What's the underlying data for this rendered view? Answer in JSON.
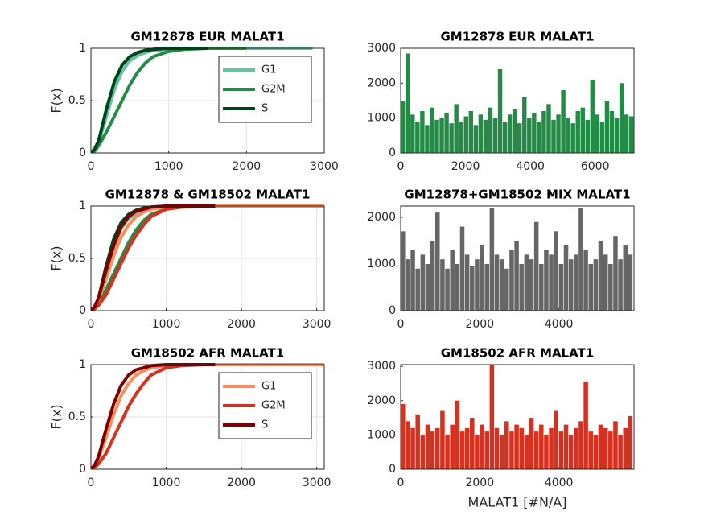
{
  "chart_data": [
    {
      "type": "line",
      "title": "GM12878 EUR MALAT1",
      "y_label": "F(x)",
      "x": [
        0,
        50,
        100,
        200,
        300,
        400,
        500,
        600,
        700,
        800,
        1000,
        1200,
        1500,
        2000,
        2500,
        2850
      ],
      "series": [
        {
          "name": "G1",
          "color": "#66c2a4",
          "values": [
            0,
            0.03,
            0.1,
            0.35,
            0.6,
            0.78,
            0.88,
            0.93,
            0.96,
            0.98,
            0.99,
            1,
            1,
            1,
            1,
            1
          ]
        },
        {
          "name": "G2M",
          "color": "#238b45",
          "values": [
            0,
            0.02,
            0.07,
            0.2,
            0.35,
            0.5,
            0.65,
            0.77,
            0.86,
            0.92,
            0.97,
            0.99,
            1,
            1,
            null,
            null
          ]
        },
        {
          "name": "S",
          "color": "#00441b",
          "values": [
            0,
            0.04,
            0.12,
            0.42,
            0.68,
            0.84,
            0.92,
            0.96,
            0.98,
            0.99,
            1,
            1,
            1,
            null,
            null,
            null
          ]
        }
      ],
      "xlim": [
        0,
        3000
      ],
      "xticks": [
        0,
        1000,
        2000,
        3000
      ],
      "ylim": [
        0,
        1
      ],
      "yticks": [
        0,
        0.5,
        1
      ],
      "grid": true,
      "legend": "upper right"
    },
    {
      "type": "bar",
      "title": "GM12878 EUR MALAT1",
      "color": "#238b45",
      "x": [
        0,
        150,
        300,
        450,
        600,
        750,
        900,
        1050,
        1200,
        1350,
        1500,
        1650,
        1800,
        1950,
        2100,
        2250,
        2400,
        2550,
        2700,
        2850,
        3000,
        3150,
        3300,
        3450,
        3600,
        3750,
        3900,
        4050,
        4200,
        4350,
        4500,
        4650,
        4800,
        4950,
        5100,
        5250,
        5400,
        5550,
        5700,
        5850,
        6000,
        6150,
        6300,
        6450,
        6600,
        6750,
        6900,
        7050
      ],
      "values": [
        1500,
        2850,
        1100,
        900,
        1200,
        800,
        1300,
        950,
        1000,
        1150,
        850,
        1400,
        900,
        1050,
        1200,
        800,
        1100,
        950,
        1300,
        1000,
        2400,
        900,
        1100,
        1250,
        850,
        1600,
        1000,
        1150,
        900,
        1200,
        1400,
        950,
        1100,
        1800,
        1000,
        850,
        1200,
        1300,
        950,
        2100,
        1100,
        900,
        1500,
        1200,
        1000,
        2000,
        1100,
        1050
      ],
      "xlim": [
        0,
        7200
      ],
      "xticks": [
        0,
        2000,
        4000,
        6000
      ],
      "ylim": [
        0,
        3000
      ],
      "yticks": [
        0,
        1000,
        2000,
        3000
      ],
      "grid": false
    },
    {
      "type": "line",
      "title": "GM12878 & GM18502 MALAT1",
      "y_label": "F(x)",
      "x": [
        0,
        50,
        100,
        200,
        300,
        400,
        500,
        600,
        700,
        800,
        1000,
        1200,
        1500,
        1650,
        2000,
        2500,
        3100
      ],
      "series": [
        {
          "color": "#66c2a4",
          "values": [
            0,
            0.03,
            0.1,
            0.35,
            0.6,
            0.78,
            0.88,
            0.93,
            0.96,
            0.98,
            0.99,
            1,
            1,
            1,
            null,
            null,
            null
          ]
        },
        {
          "color": "#238b45",
          "values": [
            0,
            0.02,
            0.07,
            0.2,
            0.35,
            0.5,
            0.65,
            0.77,
            0.86,
            0.92,
            0.97,
            0.99,
            1,
            1,
            null,
            null,
            null
          ]
        },
        {
          "color": "#00441b",
          "values": [
            0,
            0.04,
            0.12,
            0.42,
            0.68,
            0.84,
            0.92,
            0.96,
            0.98,
            0.99,
            1,
            1,
            1,
            null,
            null,
            null,
            null
          ]
        },
        {
          "color": "#fc8d59",
          "values": [
            0,
            0.03,
            0.1,
            0.3,
            0.52,
            0.7,
            0.82,
            0.9,
            0.94,
            0.97,
            0.99,
            1,
            1,
            1,
            1,
            1,
            1
          ]
        },
        {
          "color": "#d7301f",
          "values": [
            0,
            0.02,
            0.05,
            0.15,
            0.3,
            0.45,
            0.6,
            0.72,
            0.82,
            0.9,
            0.97,
            0.99,
            1,
            1,
            null,
            null,
            null
          ]
        },
        {
          "color": "#7f0000",
          "values": [
            0,
            0.04,
            0.12,
            0.38,
            0.62,
            0.8,
            0.9,
            0.95,
            0.97,
            0.99,
            1,
            1,
            1,
            1,
            null,
            null,
            null
          ]
        }
      ],
      "xlim": [
        0,
        3100
      ],
      "xticks": [
        0,
        1000,
        2000,
        3000
      ],
      "ylim": [
        0,
        1
      ],
      "yticks": [
        0,
        0.5,
        1
      ],
      "grid": true
    },
    {
      "type": "bar",
      "title": "GM12878+GM18502 MIX MALAT1",
      "color": "#666666",
      "x": [
        0,
        125,
        250,
        375,
        500,
        625,
        750,
        875,
        1000,
        1125,
        1250,
        1375,
        1500,
        1625,
        1750,
        1875,
        2000,
        2125,
        2250,
        2375,
        2500,
        2625,
        2750,
        2875,
        3000,
        3125,
        3250,
        3375,
        3500,
        3625,
        3750,
        3875,
        4000,
        4125,
        4250,
        4375,
        4500,
        4625,
        4750,
        4875,
        5000,
        5125,
        5250,
        5375,
        5500,
        5625,
        5750
      ],
      "values": [
        1700,
        1100,
        1300,
        900,
        1200,
        1000,
        1500,
        2100,
        1100,
        900,
        1300,
        1000,
        1800,
        1200,
        950,
        1100,
        1400,
        1000,
        2200,
        1200,
        1100,
        900,
        1300,
        1500,
        1000,
        1200,
        1100,
        1900,
        1000,
        1300,
        1200,
        1700,
        1000,
        1400,
        1100,
        1200,
        2200,
        1300,
        1000,
        1100,
        1500,
        1200,
        1000,
        1600,
        1100,
        1400,
        1200
      ],
      "xlim": [
        0,
        5900
      ],
      "xticks": [
        0,
        2000,
        4000
      ],
      "ylim": [
        0,
        2240
      ],
      "yticks": [
        0,
        1000,
        2000
      ],
      "grid": false
    },
    {
      "type": "line",
      "title": "GM18502 AFR MALAT1",
      "y_label": "F(x)",
      "x": [
        0,
        50,
        100,
        200,
        300,
        400,
        500,
        600,
        700,
        800,
        1000,
        1200,
        1500,
        1650,
        2000,
        2500,
        3100
      ],
      "series": [
        {
          "name": "G1",
          "color": "#fc8d59",
          "values": [
            0,
            0.03,
            0.1,
            0.3,
            0.52,
            0.7,
            0.82,
            0.9,
            0.94,
            0.97,
            0.99,
            1,
            1,
            1,
            1,
            1,
            1
          ]
        },
        {
          "name": "G2M",
          "color": "#d7301f",
          "values": [
            0,
            0.02,
            0.05,
            0.15,
            0.3,
            0.45,
            0.6,
            0.72,
            0.82,
            0.9,
            0.97,
            0.99,
            1,
            1,
            null,
            null,
            null
          ]
        },
        {
          "name": "S",
          "color": "#7f0000",
          "values": [
            0,
            0.04,
            0.12,
            0.38,
            0.62,
            0.8,
            0.9,
            0.95,
            0.97,
            0.99,
            1,
            1,
            1,
            1,
            null,
            null,
            null
          ]
        }
      ],
      "xlim": [
        0,
        3100
      ],
      "xticks": [
        0,
        1000,
        2000,
        3000
      ],
      "ylim": [
        0,
        1
      ],
      "yticks": [
        0,
        0.5,
        1
      ],
      "grid": true,
      "legend": "upper right"
    },
    {
      "type": "bar",
      "title": "GM18502 AFR MALAT1",
      "x_label": "MALAT1 [#N/A]",
      "color": "#d7301f",
      "x": [
        0,
        125,
        250,
        375,
        500,
        625,
        750,
        875,
        1000,
        1125,
        1250,
        1375,
        1500,
        1625,
        1750,
        1875,
        2000,
        2125,
        2250,
        2375,
        2500,
        2625,
        2750,
        2875,
        3000,
        3125,
        3250,
        3375,
        3500,
        3625,
        3750,
        3875,
        4000,
        4125,
        4250,
        4375,
        4500,
        4625,
        4750,
        4875,
        5000,
        5125,
        5250,
        5375,
        5500,
        5625,
        5750
      ],
      "values": [
        1900,
        1400,
        1200,
        1600,
        1000,
        1300,
        1100,
        1200,
        1700,
        1000,
        1300,
        2000,
        1100,
        1200,
        1500,
        1000,
        1300,
        1100,
        3050,
        1200,
        1000,
        1400,
        1100,
        1300,
        1200,
        1000,
        1500,
        1100,
        1300,
        1000,
        1200,
        1700,
        1100,
        1300,
        1000,
        1200,
        1400,
        2550,
        1100,
        1000,
        1300,
        1200,
        1100,
        1400,
        1000,
        1200,
        1550
      ],
      "xlim": [
        0,
        5900
      ],
      "xticks": [
        0,
        2000,
        4000
      ],
      "ylim": [
        0,
        3050
      ],
      "yticks": [
        0,
        1000,
        2000,
        3000
      ],
      "grid": false
    }
  ]
}
